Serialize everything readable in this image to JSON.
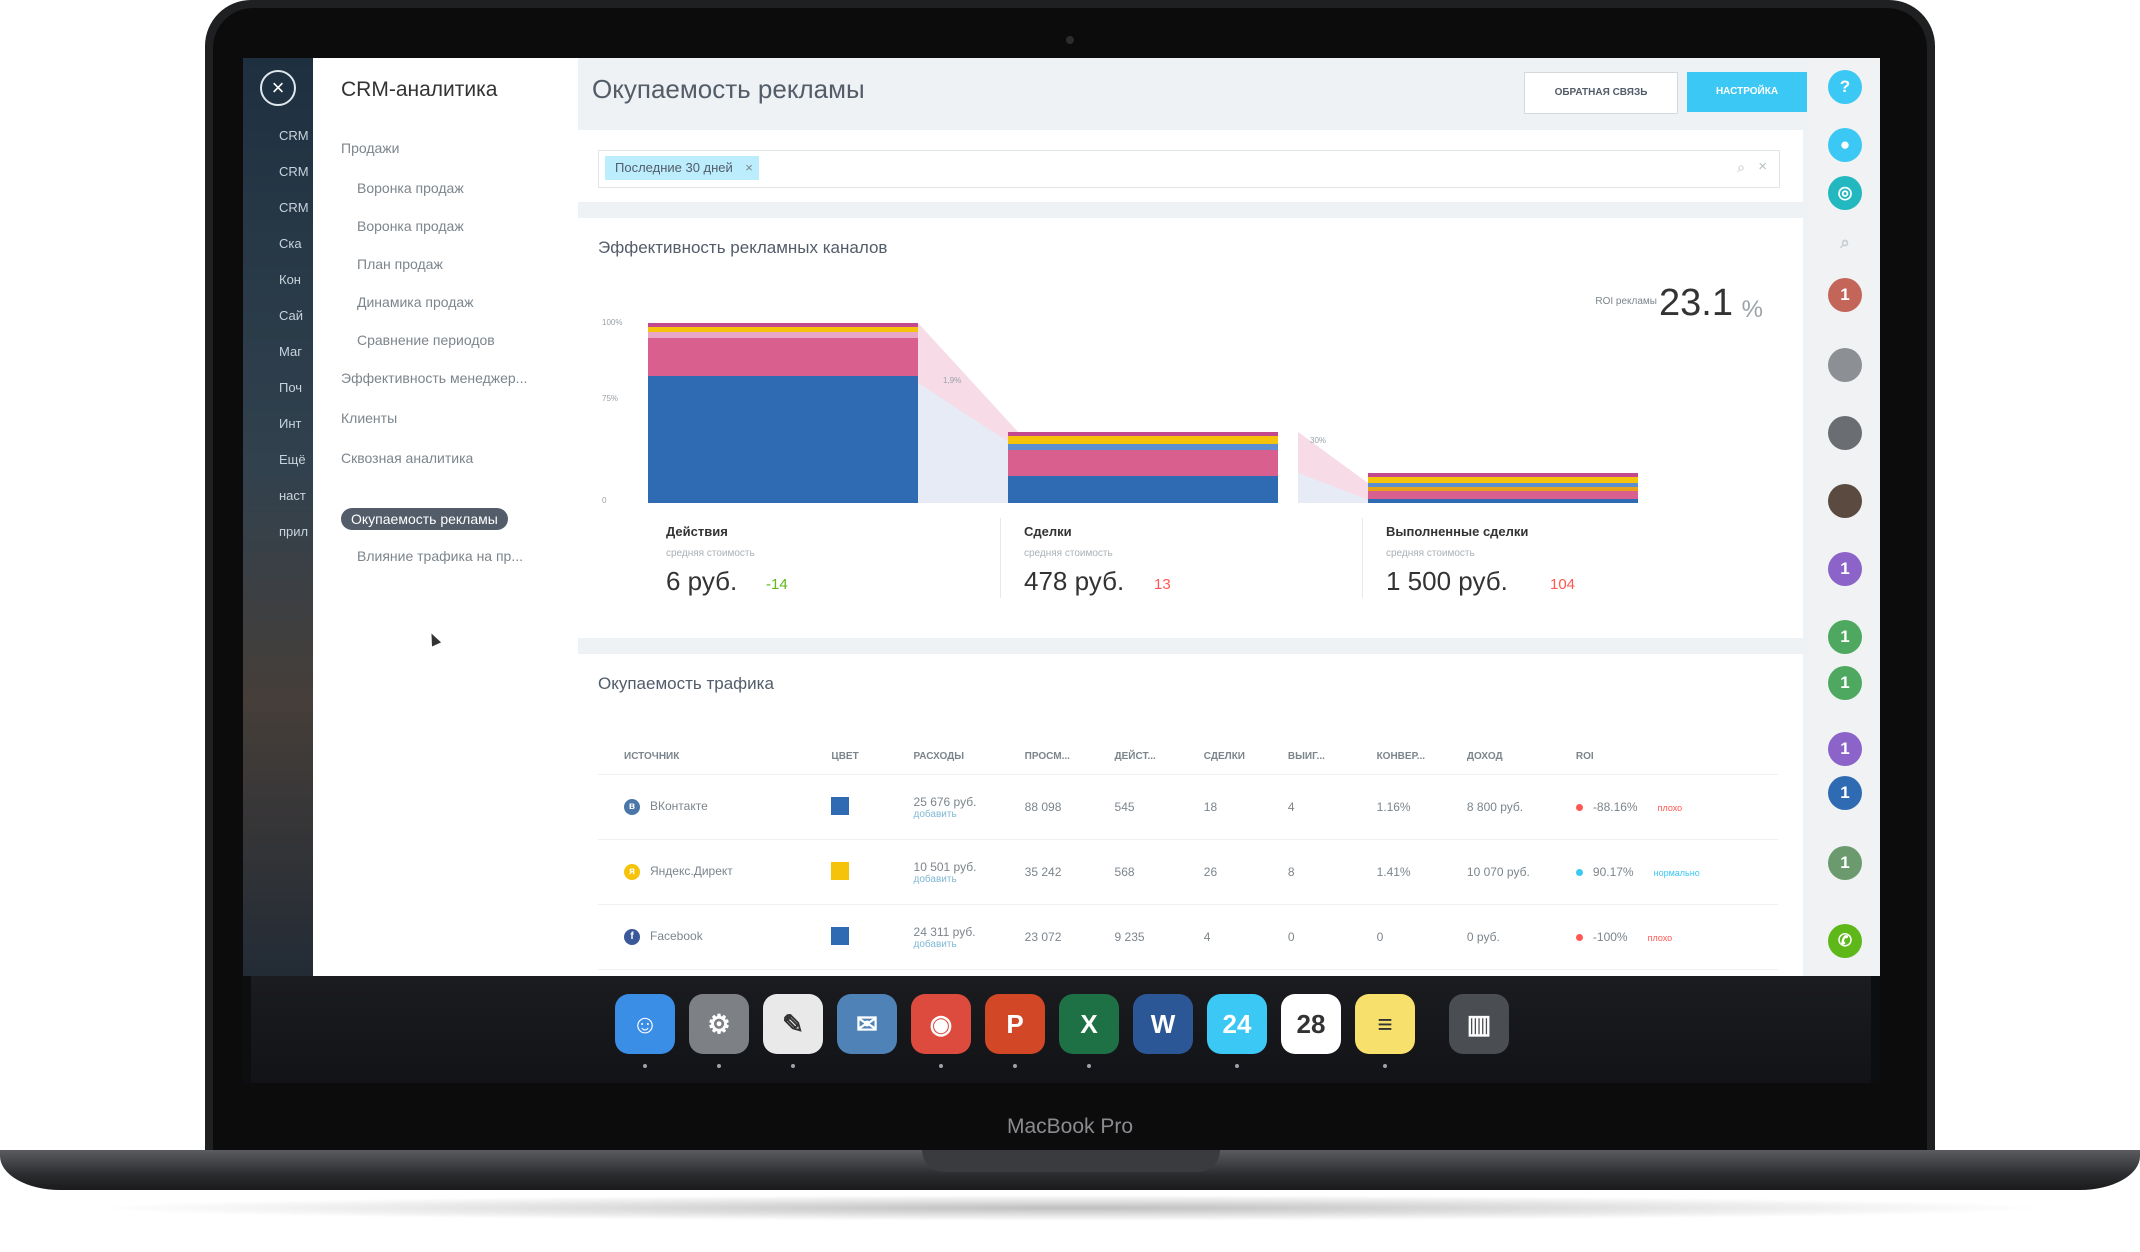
{
  "brand": "MacBook Pro",
  "background_menu": [
    "CRM",
    "CRM",
    "CRM",
    "Ска",
    "Кон",
    "Сай",
    "Маг",
    "Поч",
    "Инт",
    "Ещё",
    "наст",
    "прил"
  ],
  "nav": {
    "title": "CRM-аналитика",
    "items": [
      {
        "label": "Продажи",
        "level": 0
      },
      {
        "label": "Воронка продаж",
        "level": 1
      },
      {
        "label": "Воронка продаж",
        "level": 1
      },
      {
        "label": "План продаж",
        "level": 1
      },
      {
        "label": "Динамика продаж",
        "level": 1
      },
      {
        "label": "Сравнение периодов",
        "level": 1
      },
      {
        "label": "Эффективность менеджер...",
        "level": 0
      },
      {
        "label": "Клиенты",
        "level": 0
      },
      {
        "label": "Сквозная аналитика",
        "level": 0
      },
      {
        "label": "Окупаемость рекламы",
        "level": 0,
        "active": true
      },
      {
        "label": "Влияние трафика на пр...",
        "level": 1
      }
    ]
  },
  "header": {
    "title": "Окупаемость рекламы",
    "feedback_label": "ОБРАТНАЯ СВЯЗЬ",
    "settings_label": "НАСТРОЙКА"
  },
  "filter": {
    "chip_label": "Последние 30 дней"
  },
  "efficiency": {
    "title": "Эффективность рекламных каналов",
    "roi_label": "ROI рекламы",
    "roi_value": "23.1",
    "roi_unit": "%",
    "y_ticks": [
      "100%",
      "75%",
      "0"
    ],
    "transitions": [
      "1,9%",
      "30%"
    ],
    "stages": [
      {
        "label": "Действия",
        "sub": "средняя стоимость",
        "value": "6 руб.",
        "delta": "-14",
        "delta_color": "#5fb81a"
      },
      {
        "label": "Сделки",
        "sub": "средняя стоимость",
        "value": "478 руб.",
        "delta": "13",
        "delta_color": "#ff5752"
      },
      {
        "label": "Выполненные сделки",
        "sub": "средняя стоимость",
        "value": "1 500 руб.",
        "delta": "104",
        "delta_color": "#ff5752"
      }
    ],
    "segment_colors": [
      "#2f6bb3",
      "#d9608e",
      "#f4c30a",
      "#c3488e",
      "#e6a21a"
    ]
  },
  "traffic": {
    "title": "Окупаемость трафика",
    "columns": [
      "ИСТОЧНИК",
      "ЦВЕТ",
      "РАСХОДЫ",
      "ПРОСМ...",
      "ДЕЙСТ...",
      "СДЕЛКИ",
      "ВЫИГ...",
      "КОНВЕР...",
      "ДОХОД",
      "ROI"
    ],
    "add_label": "добавить",
    "rows": [
      {
        "source": "ВКонтакте",
        "icon_color": "#4a76a8",
        "icon": "в",
        "color": "#2f6bb3",
        "expense": "25 676 руб.",
        "views": "88 098",
        "actions": "545",
        "deals": "18",
        "won": "4",
        "conversion": "1.16%",
        "income": "8 800 руб.",
        "roi": "-88.16%",
        "roi_dot": "#ff5752",
        "badge": "плохо",
        "badge_color": "#ff5752"
      },
      {
        "source": "Яндекс.Директ",
        "icon_color": "#f4c30a",
        "icon": "я",
        "color": "#f4c30a",
        "expense": "10 501 руб.",
        "views": "35 242",
        "actions": "568",
        "deals": "26",
        "won": "8",
        "conversion": "1.41%",
        "income": "10 070 руб.",
        "roi": "90.17%",
        "roi_dot": "#3bc8f5",
        "badge": "нормально",
        "badge_color": "#3bc8f5"
      },
      {
        "source": "Facebook",
        "icon_color": "#3b5998",
        "icon": "f",
        "color": "#2f6bb3",
        "expense": "24 311 руб.",
        "views": "23 072",
        "actions": "9 235",
        "deals": "4",
        "won": "0",
        "conversion": "0",
        "income": "0 руб.",
        "roi": "-100%",
        "roi_dot": "#ff5752",
        "badge": "плохо",
        "badge_color": "#ff5752"
      }
    ]
  },
  "right_bar": {
    "icons": [
      {
        "name": "help-icon",
        "glyph": "?",
        "color": "#3bc8f5"
      },
      {
        "name": "bell-icon",
        "glyph": "●",
        "color": "#3bc8f5"
      },
      {
        "name": "chat-icon",
        "glyph": "◎",
        "color": "#23b7c0"
      },
      {
        "name": "search-icon",
        "glyph": "⌕",
        "color": "#c8cdd1"
      }
    ],
    "avatars": [
      {
        "color": "#c4655a",
        "glyph": "1"
      },
      {
        "color": "#8c8f94",
        "glyph": ""
      },
      {
        "color": "#6a6d72",
        "glyph": ""
      },
      {
        "color": "#5b4a40",
        "glyph": ""
      },
      {
        "color": "#8b63c9",
        "glyph": "1"
      },
      {
        "color": "#4ea85f",
        "glyph": "1"
      },
      {
        "color": "#4ea85f",
        "glyph": "1"
      },
      {
        "color": "#8b63c9",
        "glyph": "1"
      },
      {
        "color": "#2f6bb3",
        "glyph": "1"
      },
      {
        "color": "#6a9a6e",
        "glyph": "1"
      },
      {
        "color": "#5fb81a",
        "glyph": "✆"
      }
    ]
  },
  "dock": {
    "apps": [
      {
        "name": "finder",
        "color": "#3a8ee6",
        "glyph": "☺",
        "running": true
      },
      {
        "name": "system-preferences",
        "color": "#7d8085",
        "glyph": "⚙",
        "running": true
      },
      {
        "name": "textedit",
        "color": "#e9e9e9",
        "glyph": "✎",
        "running": true
      },
      {
        "name": "preview",
        "color": "#4f83b8",
        "glyph": "✉",
        "running": false
      },
      {
        "name": "chrome",
        "color": "#dd4b3e",
        "glyph": "◉",
        "running": true
      },
      {
        "name": "powerpoint",
        "color": "#d24726",
        "glyph": "P",
        "running": true
      },
      {
        "name": "excel",
        "color": "#1e7145",
        "glyph": "X",
        "running": true
      },
      {
        "name": "word",
        "color": "#2b5797",
        "glyph": "W",
        "running": false
      },
      {
        "name": "bitrix24",
        "color": "#3bc8f5",
        "glyph": "24",
        "running": true
      },
      {
        "name": "calendar",
        "color": "#ffffff",
        "glyph": "28",
        "running": false
      },
      {
        "name": "notes",
        "color": "#f7e06b",
        "glyph": "≡",
        "running": true
      },
      {
        "name": "trash",
        "color": "#4a4d52",
        "glyph": "▥",
        "running": false
      }
    ]
  }
}
